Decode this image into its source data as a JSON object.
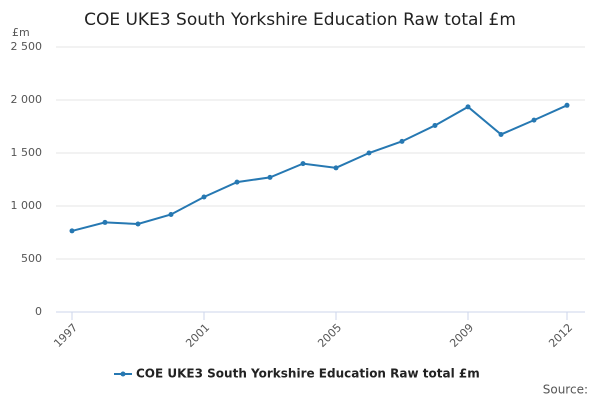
{
  "chart_data": {
    "type": "line",
    "title": "COE UKE3 South Yorkshire Education Raw total £m",
    "y_unit": "£m",
    "source": "Source:",
    "x": [
      1997,
      1998,
      1999,
      2000,
      2001,
      2002,
      2003,
      2004,
      2005,
      2006,
      2007,
      2008,
      2009,
      2010,
      2011,
      2012
    ],
    "series": [
      {
        "name": "COE UKE3 South Yorkshire Education Raw total £m",
        "color": "#2678b2",
        "values": [
          765,
          845,
          830,
          920,
          1085,
          1225,
          1270,
          1400,
          1360,
          1500,
          1610,
          1760,
          1935,
          1675,
          1810,
          1950
        ]
      }
    ],
    "xlim": [
      1997,
      2012
    ],
    "xticks": [
      1997,
      2001,
      2005,
      2009,
      2012
    ],
    "ylim": [
      0,
      2500
    ],
    "yticks": [
      0,
      500,
      {
        "value": 1000,
        "label": "1 000"
      },
      {
        "value": 1500,
        "label": "1 500"
      },
      {
        "value": 2000,
        "label": "2 000"
      },
      {
        "value": 2500,
        "label": "2 500"
      }
    ],
    "grid": true
  }
}
